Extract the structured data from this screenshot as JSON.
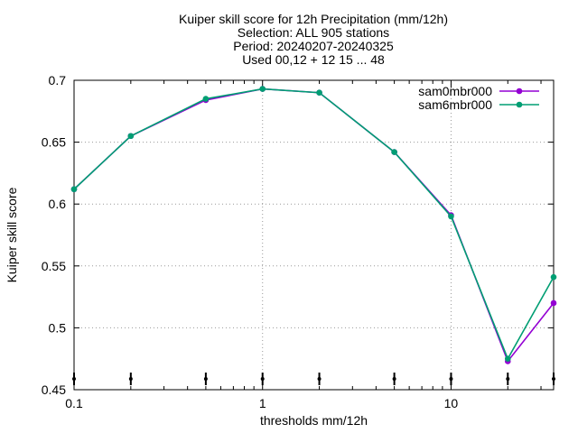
{
  "chart_data": {
    "type": "line",
    "title_lines": [
      "Kuiper skill score  for 12h Precipitation (mm/12h)",
      "Selection: ALL    905 stations",
      "Period: 20240207-20240325",
      "Used 00,12 + 12 15 ... 48"
    ],
    "xlabel": "thresholds mm/12h",
    "ylabel": "Kuiper skill score",
    "x_scale": "log",
    "xlim": [
      0.1,
      35
    ],
    "ylim": [
      0.45,
      0.7
    ],
    "x_ticks": [
      0.1,
      1,
      10
    ],
    "x_tick_labels": [
      "0.1",
      "1",
      "10"
    ],
    "y_ticks": [
      0.45,
      0.5,
      0.55,
      0.6,
      0.65,
      0.7
    ],
    "y_tick_labels": [
      "0.45",
      "0.5",
      "0.55",
      "0.6",
      "0.65",
      "0.7"
    ],
    "grid": true,
    "legend_position": "top-right",
    "x": [
      0.1,
      0.2,
      0.5,
      1,
      2,
      5,
      10,
      20,
      35
    ],
    "series": [
      {
        "name": "sam0mbr000",
        "color": "#9400d3",
        "values": [
          0.612,
          0.655,
          0.684,
          0.693,
          0.69,
          0.642,
          0.591,
          0.473,
          0.52
        ]
      },
      {
        "name": "sam6mbr000",
        "color": "#009e73",
        "values": [
          0.612,
          0.655,
          0.685,
          0.693,
          0.69,
          0.642,
          0.59,
          0.475,
          0.541
        ]
      }
    ]
  }
}
